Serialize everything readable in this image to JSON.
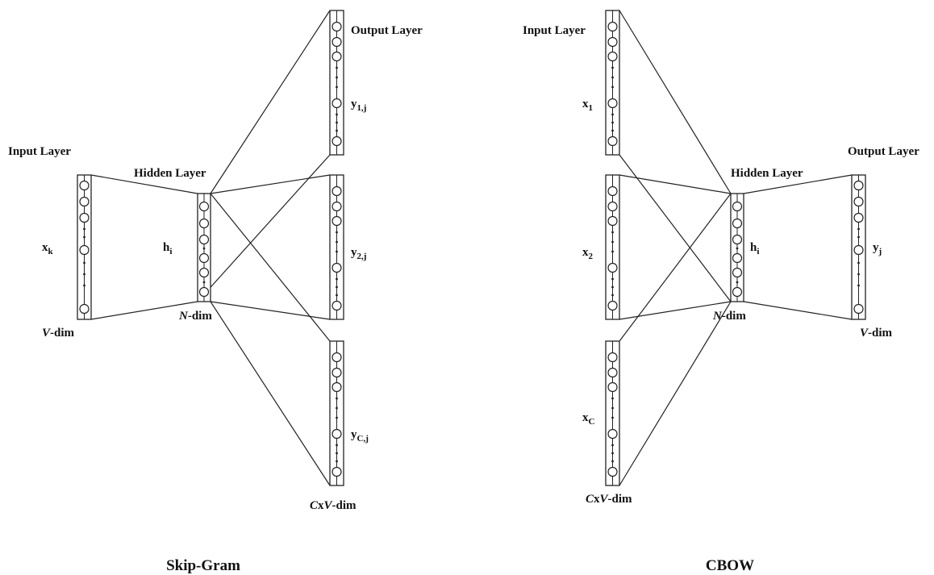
{
  "skipgram": {
    "title": "Skip-Gram",
    "input_layer_label": "Input Layer",
    "hidden_layer_label": "Hidden Layer",
    "output_layer_label": "Output Layer",
    "input_var": "x",
    "input_sub": "k",
    "hidden_var": "h",
    "hidden_sub": "i",
    "out1_var": "y",
    "out1_sub": "1,j",
    "out2_var": "y",
    "out2_sub": "2,j",
    "out3_var": "y",
    "out3_sub": "C,j",
    "input_dim_italic": "V",
    "input_dim_rest": "-dim",
    "hidden_dim_italic": "N",
    "hidden_dim_rest": "-dim",
    "output_dim_c": "C",
    "output_dim_x": "x",
    "output_dim_v": "V",
    "output_dim_rest": "-dim"
  },
  "cbow": {
    "title": "CBOW",
    "input_layer_label": "Input Layer",
    "hidden_layer_label": "Hidden Layer",
    "output_layer_label": "Output Layer",
    "in1_var": "x",
    "in1_sub": "1",
    "in2_var": "x",
    "in2_sub": "2",
    "in3_var": "x",
    "in3_sub": "C",
    "hidden_var": "h",
    "hidden_sub": "i",
    "output_var": "y",
    "output_sub": "j",
    "input_dim_c": "C",
    "input_dim_x": "x",
    "input_dim_v": "V",
    "input_dim_rest": "-dim",
    "hidden_dim_italic": "N",
    "hidden_dim_rest": "-dim",
    "output_dim_italic": "V",
    "output_dim_rest": "-dim"
  }
}
